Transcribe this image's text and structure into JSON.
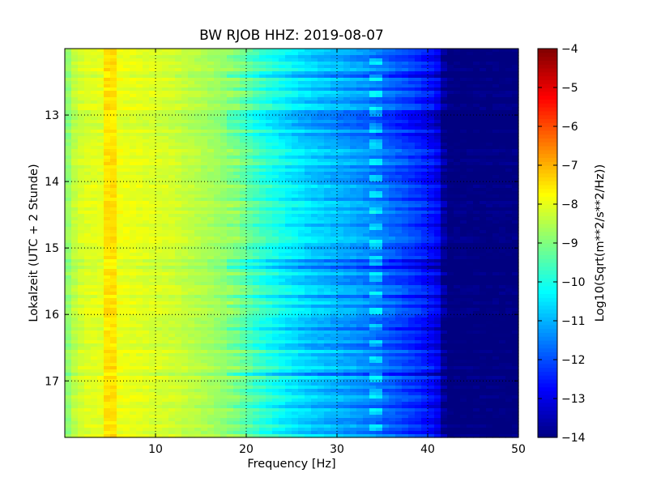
{
  "chart_data": {
    "type": "heatmap",
    "title": "BW RJOB HHZ: 2019-08-07",
    "xlabel": "Frequency [Hz]",
    "ylabel": "Lokalzeit (UTC + 2 Stunde)",
    "xlim": [
      0,
      50
    ],
    "ylim": [
      17.85,
      12.0
    ],
    "x_ticks": [
      10,
      20,
      30,
      40,
      50
    ],
    "y_ticks": [
      13,
      14,
      15,
      16,
      17
    ],
    "grid": true,
    "colormap": "jet",
    "colorbar": {
      "label": "Log10(Sqrt(m**2/s**2/Hz))",
      "range": [
        -14,
        -4
      ],
      "ticks": [
        -14,
        -13,
        -12,
        -11,
        -10,
        -9,
        -8,
        -7,
        -6,
        -5,
        -4
      ]
    },
    "spectrum_profile": {
      "frequency": [
        0,
        1,
        2,
        4,
        6,
        8,
        12,
        16,
        19,
        21,
        24,
        27,
        30,
        33,
        36,
        39,
        41,
        42,
        50
      ],
      "value": [
        -9.0,
        -8.4,
        -8.1,
        -8.0,
        -7.9,
        -8.0,
        -8.2,
        -8.6,
        -9.0,
        -9.6,
        -10.2,
        -10.7,
        -11.0,
        -11.3,
        -11.8,
        -12.3,
        -12.8,
        -14.0,
        -14.0
      ]
    }
  }
}
